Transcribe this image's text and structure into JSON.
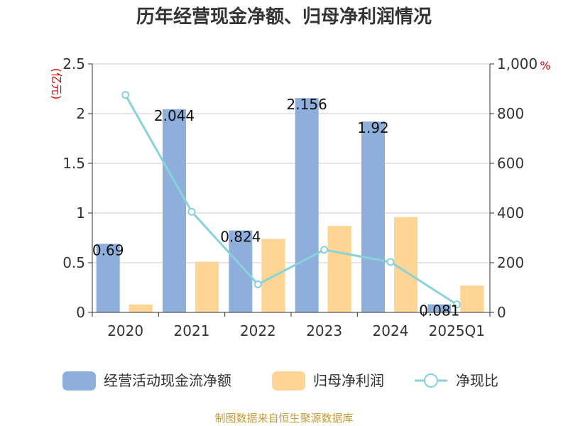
{
  "chart_data": {
    "type": "bar",
    "title": "历年经营现金净额、归母净利润情况",
    "categories": [
      "2020",
      "2021",
      "2022",
      "2023",
      "2024",
      "2025Q1"
    ],
    "y_left": {
      "unit": "(亿元)",
      "range": [
        0,
        2.5
      ],
      "ticks": [
        "0",
        "0.5",
        "1",
        "1.5",
        "2",
        "2.5"
      ]
    },
    "y_right": {
      "unit": "%",
      "range": [
        0,
        1000
      ],
      "ticks": [
        "0",
        "200",
        "400",
        "600",
        "800",
        "1,000"
      ]
    },
    "series": [
      {
        "name": "经营活动现金流净额",
        "type": "bar",
        "axis": "left",
        "color": "#8eaedb",
        "values": [
          0.69,
          2.044,
          0.824,
          2.156,
          1.92,
          0.081
        ],
        "labels": [
          "0.69",
          "2.044",
          "0.824",
          "2.156",
          "1.92",
          "0.081"
        ]
      },
      {
        "name": "归母净利润",
        "type": "bar",
        "axis": "left",
        "color": "#fed595",
        "values": [
          0.08,
          0.51,
          0.74,
          0.87,
          0.96,
          0.27
        ]
      },
      {
        "name": "净现比",
        "type": "line",
        "axis": "right",
        "color": "#88d3d8",
        "values": [
          875,
          405,
          113,
          252,
          203,
          32
        ]
      }
    ],
    "grid": true,
    "legend": "bottom"
  },
  "source": "制图数据来自恒生聚源数据库"
}
